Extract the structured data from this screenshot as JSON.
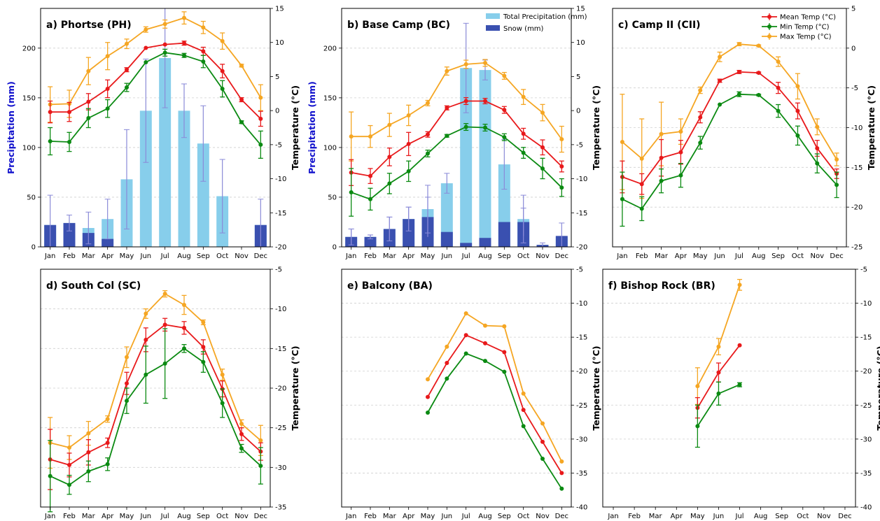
{
  "months": [
    "Jan",
    "Feb",
    "Mar",
    "Apr",
    "May",
    "Jun",
    "Jul",
    "Aug",
    "Sep",
    "Oct",
    "Nov",
    "Dec"
  ],
  "colors": {
    "mean": "#e8191b",
    "min": "#0b8a12",
    "max": "#f5a623",
    "precip": "#87ceeb",
    "snow": "#3a50b0",
    "precip_axis_text": "#1010cc"
  },
  "legend_temp": {
    "mean": "Mean Temp (°C)",
    "min": "Min Temp (°C)",
    "max": "Max Temp (°C)"
  },
  "legend_precip": {
    "total": "Total Precipitation (mm)",
    "snow": "Snow (mm)"
  },
  "axis_labels": {
    "precip": "Precipitation (mm)",
    "temp": "Temperature (°C)"
  },
  "chart_data": [
    {
      "type": "bar+line",
      "title": "a) Phortse (PH)",
      "ylabel_left": "Precipitation (mm)",
      "ylabel_right": "Temperature (°C)",
      "ylim_left": [
        0,
        240
      ],
      "ylim_right": [
        -20,
        15
      ],
      "left_ticks": [
        0,
        50,
        100,
        150,
        200
      ],
      "right_ticks": [
        -20,
        -15,
        -10,
        -5,
        0,
        5,
        10,
        15
      ],
      "precip_total": [
        22,
        24,
        19,
        28,
        68,
        137,
        190,
        137,
        104,
        51,
        0,
        22
      ],
      "precip_total_err": [
        30,
        8,
        16,
        20,
        50,
        52,
        50,
        27,
        38,
        37,
        0,
        26
      ],
      "snow": [
        22,
        24,
        14,
        8,
        0,
        0,
        0,
        0,
        0,
        0,
        0,
        22
      ],
      "temp_mean": [
        -0.2,
        -0.2,
        1.3,
        3.2,
        6,
        9.2,
        9.7,
        9.9,
        8.7,
        5.8,
        1.6,
        -1.2
      ],
      "temp_mean_err": [
        1.6,
        1.4,
        1.2,
        1.3,
        0.3,
        0,
        0,
        0.3,
        0.6,
        1.0,
        0.3,
        1.1
      ],
      "temp_min": [
        -4.5,
        -4.6,
        -1.1,
        0.3,
        3.4,
        7.1,
        8.5,
        8.1,
        7.2,
        3.2,
        -1.7,
        -5.0
      ],
      "temp_min_err": [
        2.0,
        1.4,
        1.4,
        1.3,
        0.6,
        0,
        0.5,
        0.3,
        0.9,
        1.2,
        0.2,
        2.0
      ],
      "temp_max": [
        0.9,
        1.0,
        5.8,
        8.0,
        9.8,
        11.9,
        12.7,
        13.6,
        12.2,
        10.2,
        6.6,
        1.9
      ],
      "temp_max_err": [
        2.6,
        2.0,
        2.0,
        2.0,
        0.7,
        0.4,
        0.6,
        0.9,
        0.9,
        1.2,
        0.2,
        1.9
      ],
      "months_present": [
        0,
        1,
        2,
        3,
        4,
        5,
        6,
        7,
        8,
        9,
        10,
        11
      ]
    },
    {
      "type": "bar+line",
      "title": "b) Base Camp (BC)",
      "ylabel_left": "Precipitation (mm)",
      "ylabel_right": "Temperature (°C)",
      "ylim_left": [
        0,
        240
      ],
      "ylim_right": [
        -20,
        15
      ],
      "left_ticks": [
        0,
        50,
        100,
        150,
        200
      ],
      "right_ticks": [
        -20,
        -15,
        -10,
        -5,
        0,
        5,
        10,
        15
      ],
      "precip_total": [
        10,
        10,
        18,
        28,
        38,
        64,
        180,
        178,
        83,
        28,
        2,
        10
      ],
      "precip_total_err": [
        8,
        2,
        12,
        12,
        24,
        10,
        45,
        10,
        25,
        24,
        2,
        14
      ],
      "snow": [
        10,
        10,
        18,
        28,
        30,
        15,
        4,
        9,
        25,
        25,
        2,
        11
      ],
      "snow_err": [
        8,
        2,
        12,
        12,
        20,
        0,
        0,
        0,
        0,
        14,
        0,
        0
      ],
      "temp_mean": [
        -9.1,
        -9.6,
        -6.8,
        -4.9,
        -3.5,
        0.4,
        1.4,
        1.4,
        0.1,
        -3.4,
        -5.4,
        -8.2
      ],
      "temp_mean_err": [
        1.9,
        1.1,
        1.3,
        1.7,
        0.4,
        0.3,
        0.5,
        0.4,
        0.5,
        0.8,
        1.1,
        0.8
      ],
      "temp_min": [
        -12.0,
        -13.0,
        -10.7,
        -8.9,
        -6.3,
        -3.7,
        -2.4,
        -2.5,
        -3.9,
        -6.2,
        -8.5,
        -11.3
      ],
      "temp_min_err": [
        3.5,
        1.6,
        1.5,
        1.5,
        0.5,
        0.2,
        0.5,
        0.5,
        0.5,
        0.8,
        1.5,
        1.3
      ],
      "temp_max": [
        -3.8,
        -3.8,
        -2.1,
        -0.7,
        1.1,
        5.8,
        6.8,
        7.0,
        5.1,
        2.0,
        -0.3,
        -4.2
      ],
      "temp_max_err": [
        3.6,
        1.6,
        1.7,
        1.5,
        0.4,
        0.6,
        0.6,
        0.5,
        0.5,
        1.1,
        1.2,
        1.9
      ],
      "months_present": [
        0,
        1,
        2,
        3,
        4,
        5,
        6,
        7,
        8,
        9,
        10,
        11
      ]
    },
    {
      "type": "line",
      "title": "c) Camp II (CII)",
      "ylabel_right": "Temperature (°C)",
      "ylim_right": [
        -25,
        5
      ],
      "right_ticks": [
        -25,
        -20,
        -15,
        -10,
        -5,
        0,
        5
      ],
      "temp_mean": [
        -16.2,
        -17.1,
        -13.8,
        -13.1,
        -8.7,
        -4.1,
        -3.0,
        -3.1,
        -5.0,
        -7.9,
        -12.6,
        -15.8
      ],
      "temp_mean_err": [
        2.0,
        1.3,
        2.3,
        1.5,
        0.7,
        0.2,
        0.2,
        0.1,
        0.7,
        1.0,
        1.0,
        0.6
      ],
      "temp_min": [
        -19.0,
        -20.2,
        -16.7,
        -16.0,
        -11.9,
        -7.1,
        -5.8,
        -5.9,
        -7.9,
        -11.0,
        -14.5,
        -17.2
      ],
      "temp_min_err": [
        3.4,
        1.5,
        1.5,
        1.5,
        0.8,
        0,
        0.3,
        0.1,
        0.8,
        1.2,
        1.2,
        1.6
      ],
      "temp_max": [
        -11.8,
        -13.9,
        -10.8,
        -10.5,
        -5.3,
        -1.1,
        0.5,
        0.3,
        -1.7,
        -4.8,
        -9.9,
        -14.0
      ],
      "temp_max_err": [
        6.0,
        5.0,
        4.0,
        1.6,
        0.4,
        0.6,
        0.2,
        0.1,
        0.6,
        1.6,
        1.0,
        0.8
      ],
      "months_present": [
        0,
        1,
        2,
        3,
        4,
        5,
        6,
        7,
        8,
        9,
        10,
        11
      ]
    },
    {
      "type": "line",
      "title": "d) South Col (SC)",
      "ylabel_right": "Temperature (°C)",
      "ylim_right": [
        -35,
        -5
      ],
      "right_ticks": [
        -35,
        -30,
        -25,
        -20,
        -15,
        -10,
        -5
      ],
      "temp_mean": [
        -29.0,
        -29.7,
        -28.1,
        -26.9,
        -19.4,
        -13.9,
        -12.0,
        -12.4,
        -14.8,
        -20.1,
        -25.8,
        -28.0
      ],
      "temp_mean_err": [
        3.8,
        1.5,
        1.6,
        0.6,
        1.4,
        1.5,
        0.8,
        0.8,
        0.9,
        1.0,
        0.8,
        1.1
      ],
      "temp_min": [
        -31.1,
        -32.2,
        -30.5,
        -29.6,
        -21.6,
        -18.3,
        -16.9,
        -15.0,
        -16.7,
        -21.9,
        -27.6,
        -29.8
      ],
      "temp_min_err": [
        4.5,
        1.2,
        1.3,
        0.8,
        1.6,
        3.6,
        4.4,
        0.5,
        1.3,
        1.8,
        0.5,
        2.3
      ],
      "temp_max": [
        -26.9,
        -27.5,
        -25.7,
        -23.9,
        -16.1,
        -10.6,
        -8.1,
        -9.5,
        -11.7,
        -18.3,
        -24.5,
        -26.6
      ],
      "temp_max_err": [
        3.2,
        1.5,
        1.5,
        0.4,
        1.3,
        0.6,
        0.4,
        1.2,
        0.3,
        0.7,
        0.5,
        1.9
      ],
      "months_present": [
        0,
        1,
        2,
        3,
        4,
        5,
        6,
        7,
        8,
        9,
        10,
        11
      ]
    },
    {
      "type": "line",
      "title": "e) Balcony (BA)",
      "ylabel_right": "Temperature (°C)",
      "ylim_right": [
        -40,
        -5
      ],
      "right_ticks": [
        -40,
        -35,
        -30,
        -25,
        -20,
        -15,
        -10,
        -5
      ],
      "temp_mean": [
        null,
        null,
        null,
        null,
        -23.8,
        -18.8,
        -14.7,
        -15.9,
        -17.2,
        -25.7,
        -30.4,
        -35.0
      ],
      "temp_min": [
        null,
        null,
        null,
        null,
        -26.1,
        -21.1,
        -17.4,
        -18.5,
        -20.1,
        -28.1,
        -32.9,
        -37.3
      ],
      "temp_max": [
        null,
        null,
        null,
        null,
        -21.2,
        -16.4,
        -11.5,
        -13.3,
        -13.4,
        -23.3,
        -27.7,
        -33.3
      ],
      "months_present": [
        4,
        5,
        6,
        7,
        8,
        9,
        10,
        11
      ]
    },
    {
      "type": "line",
      "title": "f) Bishop Rock (BR)",
      "ylabel_right": "Temperature (°C)",
      "ylim_right": [
        -40,
        -5
      ],
      "right_ticks": [
        -40,
        -35,
        -30,
        -25,
        -20,
        -15,
        -10,
        -5
      ],
      "temp_mean": [
        null,
        null,
        null,
        null,
        -25.4,
        -20.2,
        -16.2,
        null,
        null,
        null,
        null,
        null
      ],
      "temp_mean_err": [
        0,
        0,
        0,
        0,
        1.5,
        1.4,
        0,
        0,
        0,
        0,
        0,
        0
      ],
      "temp_min": [
        null,
        null,
        null,
        null,
        -28.1,
        -23.3,
        -22.0,
        null,
        null,
        null,
        null,
        null
      ],
      "temp_min_err": [
        0,
        0,
        0,
        0,
        3.1,
        1.7,
        0.3,
        0,
        0,
        0,
        0,
        0
      ],
      "temp_max": [
        null,
        null,
        null,
        null,
        -22.2,
        -16.4,
        -7.3,
        null,
        null,
        null,
        null,
        null
      ],
      "temp_max_err": [
        0,
        0,
        0,
        0,
        2.7,
        1.2,
        0.8,
        0,
        0,
        0,
        0,
        0
      ],
      "months_present": [
        4,
        5,
        6
      ]
    }
  ]
}
